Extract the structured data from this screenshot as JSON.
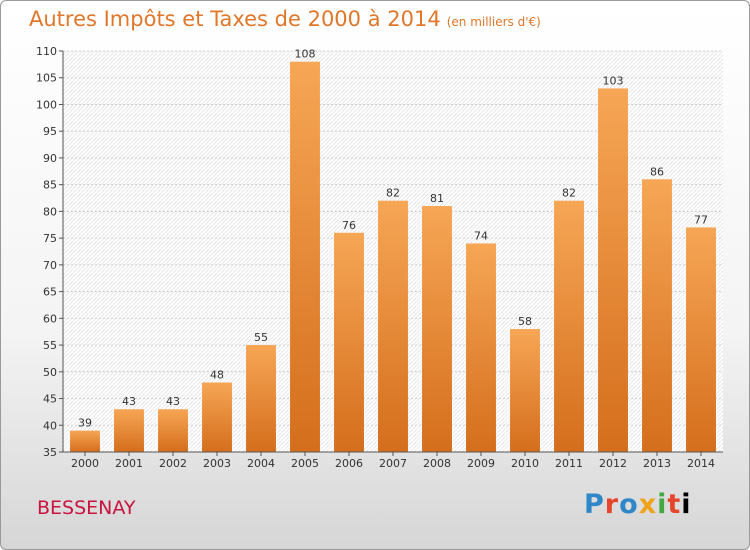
{
  "header": {
    "title": "Autres Impôts et Taxes de 2000 à 2014",
    "subtitle": "(en milliers d'€)"
  },
  "footer": {
    "place": "BESSENAY",
    "brand": "Proxiti"
  },
  "colors": {
    "bar_light": "#f6a655",
    "bar_dark": "#d46e1c",
    "title": "#e0772a",
    "place": "#c8143c"
  },
  "chart_data": {
    "type": "bar",
    "title": "Autres Impôts et Taxes de 2000 à 2014",
    "subtitle": "(en milliers d'€)",
    "xlabel": "",
    "ylabel": "",
    "categories": [
      "2000",
      "2001",
      "2002",
      "2003",
      "2004",
      "2005",
      "2006",
      "2007",
      "2008",
      "2009",
      "2010",
      "2011",
      "2012",
      "2013",
      "2014"
    ],
    "values": [
      39,
      43,
      43,
      48,
      55,
      108,
      76,
      82,
      81,
      74,
      58,
      82,
      103,
      86,
      77
    ],
    "ylim": [
      35,
      110
    ],
    "yticks": [
      35,
      40,
      45,
      50,
      55,
      60,
      65,
      70,
      75,
      80,
      85,
      90,
      95,
      100,
      105,
      110
    ],
    "grid": true,
    "legend": "none"
  }
}
